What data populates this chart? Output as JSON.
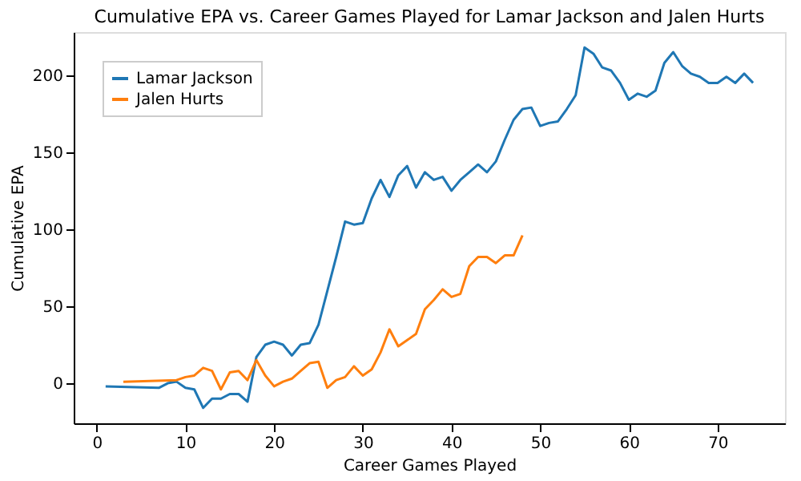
{
  "chart_data": {
    "type": "line",
    "title": "Cumulative EPA vs. Career Games Played for Lamar Jackson and Jalen Hurts",
    "xlabel": "Career Games Played",
    "ylabel": "Cumulative EPA",
    "xlim": [
      -2.6,
      77.6
    ],
    "ylim": [
      -26,
      228
    ],
    "xticks": [
      0,
      10,
      20,
      30,
      40,
      50,
      60,
      70
    ],
    "yticks": [
      0,
      50,
      100,
      150,
      200
    ],
    "grid": false,
    "legend": "top left",
    "line_style": "solid",
    "marker": "none",
    "series": [
      {
        "name": "Lamar Jackson",
        "color": "#1f77b4",
        "x": [
          1,
          7,
          8,
          9,
          10,
          11,
          12,
          13,
          14,
          15,
          16,
          17,
          18,
          19,
          20,
          21,
          22,
          23,
          24,
          25,
          26,
          27,
          28,
          29,
          30,
          31,
          32,
          33,
          34,
          35,
          36,
          37,
          38,
          39,
          40,
          41,
          42,
          43,
          44,
          45,
          46,
          47,
          48,
          49,
          50,
          51,
          52,
          53,
          54,
          55,
          56,
          57,
          58,
          59,
          60,
          61,
          62,
          63,
          64,
          65,
          66,
          67,
          68,
          69,
          70,
          71,
          72,
          73,
          74
        ],
        "values": [
          -2,
          -3,
          0,
          1,
          -3,
          -4,
          -16,
          -10,
          -10,
          -7,
          -7,
          -12,
          17,
          25,
          27,
          25,
          18,
          25,
          26,
          38,
          60,
          82,
          105,
          103,
          104,
          120,
          132,
          121,
          135,
          141,
          127,
          137,
          132,
          134,
          125,
          132,
          137,
          142,
          137,
          144,
          158,
          171,
          178,
          179,
          167,
          169,
          170,
          178,
          187,
          218,
          214,
          205,
          203,
          195,
          184,
          188,
          186,
          190,
          208,
          215,
          206,
          201,
          199,
          195,
          195,
          199,
          195,
          201,
          195
        ]
      },
      {
        "name": "Jalen Hurts",
        "color": "#ff7f0e",
        "x": [
          3,
          9,
          10,
          11,
          12,
          13,
          14,
          15,
          16,
          17,
          18,
          19,
          20,
          21,
          22,
          23,
          24,
          25,
          26,
          27,
          28,
          29,
          30,
          31,
          32,
          33,
          34,
          35,
          36,
          37,
          38,
          39,
          40,
          41,
          42,
          43,
          44,
          45,
          46,
          47,
          48
        ],
        "values": [
          1,
          2,
          4,
          5,
          10,
          8,
          -4,
          7,
          8,
          2,
          15,
          5,
          -2,
          1,
          3,
          8,
          13,
          14,
          -3,
          2,
          4,
          11,
          5,
          9,
          20,
          35,
          24,
          28,
          32,
          48,
          54,
          61,
          56,
          58,
          76,
          82,
          82,
          78,
          83,
          83,
          96
        ]
      }
    ]
  }
}
